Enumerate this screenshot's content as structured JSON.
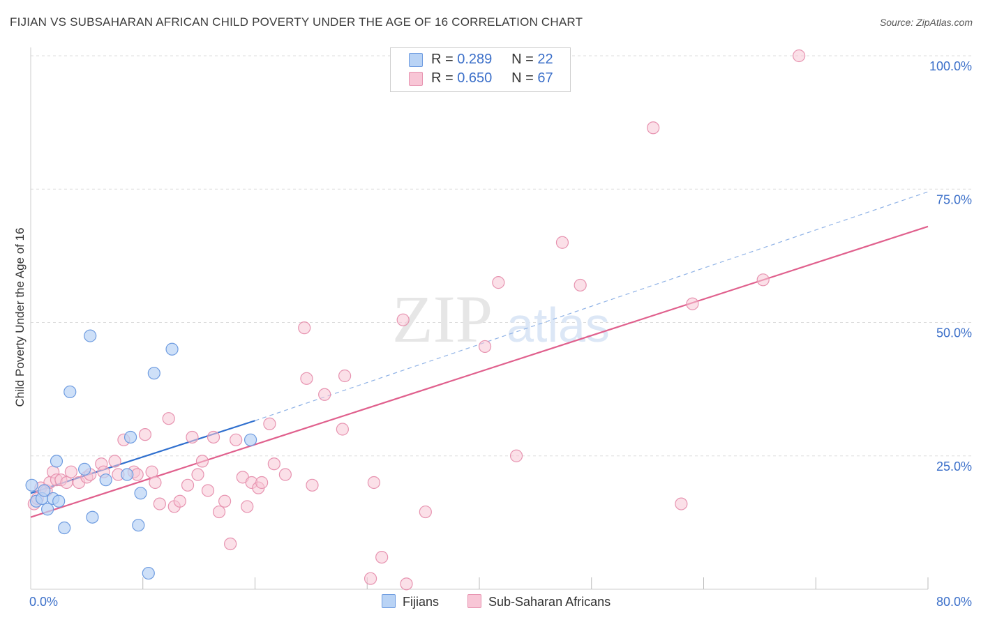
{
  "header": {
    "title": "FIJIAN VS SUBSAHARAN AFRICAN CHILD POVERTY UNDER THE AGE OF 16 CORRELATION CHART",
    "source": "Source: ZipAtlas.com"
  },
  "watermark": {
    "zip": "ZIP",
    "atlas": "atlas"
  },
  "legend": {
    "rows": [
      {
        "r_label": "R =",
        "r_value": "0.289",
        "n_label": "N =",
        "n_value": "22"
      },
      {
        "r_label": "R =",
        "r_value": "0.650",
        "n_label": "N =",
        "n_value": "67"
      }
    ],
    "bottom": [
      "Fijians",
      "Sub-Saharan Africans"
    ]
  },
  "colors": {
    "fijian_fill": "#b9d3f5",
    "fijian_stroke": "#6d9be0",
    "fijian_line": "#2f6fce",
    "african_fill": "#f8c6d6",
    "african_stroke": "#e793b0",
    "african_line": "#e0608d",
    "axis_label": "#3b6fc9",
    "grid": "#dddddd"
  },
  "chart_data": {
    "type": "scatter",
    "title": "FIJIAN VS SUBSAHARAN AFRICAN CHILD POVERTY UNDER THE AGE OF 16 CORRELATION CHART",
    "xlabel": "",
    "ylabel": "Child Poverty Under the Age of 16",
    "xlim": [
      0,
      80
    ],
    "ylim": [
      0,
      100
    ],
    "x_tick_labels": [
      "0.0%",
      "80.0%"
    ],
    "y_ticks": [
      25,
      50,
      75,
      100
    ],
    "y_tick_labels": [
      "25.0%",
      "50.0%",
      "75.0%",
      "100.0%"
    ],
    "grid": true,
    "legend_position": "top-center",
    "series": [
      {
        "name": "Fijians",
        "points": [
          [
            0.1,
            19.5
          ],
          [
            0.5,
            16.5
          ],
          [
            1.0,
            17.0
          ],
          [
            1.2,
            18.5
          ],
          [
            1.5,
            15.0
          ],
          [
            2.0,
            17.0
          ],
          [
            2.3,
            24.0
          ],
          [
            2.5,
            16.5
          ],
          [
            3.0,
            11.5
          ],
          [
            3.5,
            37.0
          ],
          [
            4.8,
            22.5
          ],
          [
            5.3,
            47.5
          ],
          [
            5.5,
            13.5
          ],
          [
            6.7,
            20.5
          ],
          [
            8.6,
            21.5
          ],
          [
            8.9,
            28.5
          ],
          [
            9.6,
            12.0
          ],
          [
            9.8,
            18.0
          ],
          [
            10.5,
            3.0
          ],
          [
            11.0,
            40.5
          ],
          [
            12.6,
            45.0
          ],
          [
            19.6,
            28.0
          ]
        ],
        "trend": {
          "x": [
            0,
            20
          ],
          "y": [
            18.0,
            31.6
          ],
          "dashed_extension_to": [
            80,
            74.5
          ]
        }
      },
      {
        "name": "Sub-Saharan Africans",
        "points": [
          [
            0.3,
            16.0
          ],
          [
            0.6,
            17.0
          ],
          [
            0.9,
            19.0
          ],
          [
            1.4,
            18.5
          ],
          [
            1.7,
            20.0
          ],
          [
            2.0,
            22.0
          ],
          [
            2.3,
            20.5
          ],
          [
            2.7,
            20.5
          ],
          [
            3.2,
            20.0
          ],
          [
            3.6,
            22.0
          ],
          [
            4.3,
            20.0
          ],
          [
            5.0,
            21.0
          ],
          [
            5.3,
            21.5
          ],
          [
            6.3,
            23.5
          ],
          [
            6.5,
            22.0
          ],
          [
            7.5,
            24.0
          ],
          [
            7.8,
            21.5
          ],
          [
            8.3,
            28.0
          ],
          [
            9.2,
            22.0
          ],
          [
            9.5,
            21.5
          ],
          [
            10.2,
            29.0
          ],
          [
            10.8,
            22.0
          ],
          [
            11.1,
            20.0
          ],
          [
            11.5,
            16.0
          ],
          [
            12.3,
            32.0
          ],
          [
            12.8,
            15.5
          ],
          [
            13.3,
            16.5
          ],
          [
            14.0,
            19.5
          ],
          [
            14.4,
            28.5
          ],
          [
            14.9,
            21.5
          ],
          [
            15.3,
            24.0
          ],
          [
            15.8,
            18.5
          ],
          [
            16.3,
            28.5
          ],
          [
            16.8,
            14.5
          ],
          [
            17.3,
            16.5
          ],
          [
            17.8,
            8.5
          ],
          [
            18.3,
            28.0
          ],
          [
            18.9,
            21.0
          ],
          [
            19.3,
            15.5
          ],
          [
            19.7,
            20.0
          ],
          [
            20.3,
            19.0
          ],
          [
            20.6,
            20.0
          ],
          [
            21.3,
            31.0
          ],
          [
            21.7,
            23.5
          ],
          [
            22.7,
            21.5
          ],
          [
            24.4,
            49.0
          ],
          [
            24.6,
            39.5
          ],
          [
            25.1,
            19.5
          ],
          [
            26.2,
            36.5
          ],
          [
            27.8,
            30.0
          ],
          [
            28.0,
            40.0
          ],
          [
            30.3,
            2.0
          ],
          [
            30.6,
            20.0
          ],
          [
            31.3,
            6.0
          ],
          [
            33.2,
            50.5
          ],
          [
            33.5,
            1.0
          ],
          [
            35.2,
            14.5
          ],
          [
            40.5,
            45.5
          ],
          [
            41.7,
            57.5
          ],
          [
            43.3,
            25.0
          ],
          [
            47.4,
            65.0
          ],
          [
            49.0,
            57.0
          ],
          [
            55.5,
            86.5
          ],
          [
            58.0,
            16.0
          ],
          [
            59.0,
            53.5
          ],
          [
            65.3,
            58.0
          ],
          [
            68.5,
            100.0
          ]
        ],
        "trend": {
          "x": [
            0,
            80
          ],
          "y": [
            13.5,
            68.0
          ]
        }
      }
    ]
  }
}
